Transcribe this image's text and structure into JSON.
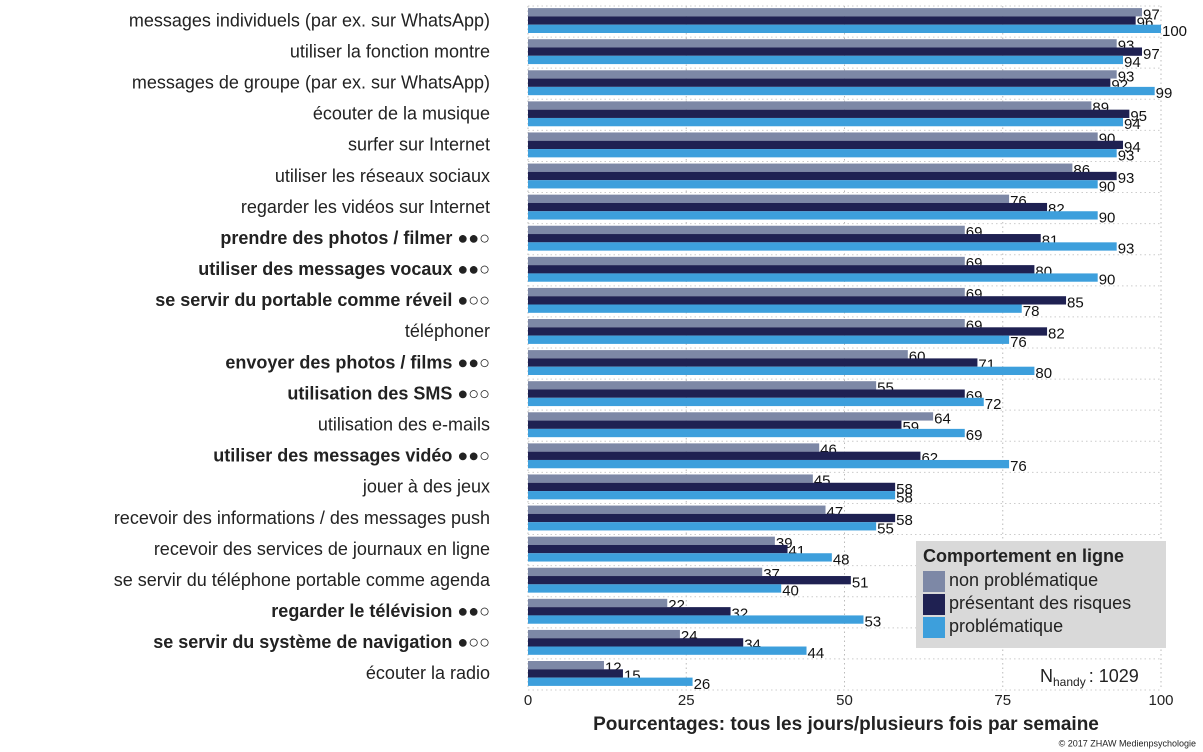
{
  "chart_data": {
    "type": "bar",
    "orientation": "horizontal",
    "categories": [
      "messages individuels (par ex. sur WhatsApp)",
      "utiliser la fonction montre",
      "messages de groupe (par ex. sur WhatsApp)",
      "écouter de la musique",
      "surfer sur Internet",
      "utiliser les réseaux sociaux",
      "regarder les vidéos sur Internet",
      "prendre des photos / filmer ●●○",
      "utiliser des messages vocaux ●●○",
      "se servir du portable comme réveil ●○○",
      "téléphoner",
      "envoyer des photos / films ●●○",
      "utilisation des SMS ●○○",
      "utilisation des e-mails",
      "utiliser des messages vidéo ●●○",
      "jouer à des jeux",
      "recevoir des informations / des messages push",
      "recevoir des services de journaux en ligne",
      "se servir du téléphone portable comme agenda",
      "regarder le télévision ●●○",
      "se servir du système de navigation ●○○",
      "écouter la radio"
    ],
    "bold": [
      false,
      false,
      false,
      false,
      false,
      false,
      false,
      true,
      true,
      true,
      false,
      true,
      true,
      false,
      true,
      false,
      false,
      false,
      false,
      true,
      true,
      false
    ],
    "series": [
      {
        "name": "non problématique",
        "color": "#7d88a6",
        "values": [
          97,
          93,
          93,
          89,
          90,
          86,
          76,
          69,
          69,
          69,
          69,
          60,
          55,
          64,
          46,
          45,
          47,
          39,
          37,
          22,
          24,
          12
        ]
      },
      {
        "name": "présentant des risques",
        "color": "#1f2152",
        "values": [
          96,
          97,
          92,
          95,
          94,
          93,
          82,
          81,
          80,
          85,
          82,
          71,
          69,
          59,
          62,
          58,
          58,
          41,
          51,
          32,
          34,
          15
        ]
      },
      {
        "name": "problématique",
        "color": "#3d9fdc",
        "values": [
          100,
          94,
          99,
          94,
          93,
          90,
          90,
          93,
          90,
          78,
          76,
          80,
          72,
          69,
          76,
          58,
          55,
          48,
          40,
          53,
          44,
          26
        ]
      }
    ],
    "xlim": [
      0,
      100
    ],
    "xticks": [
      0,
      25,
      50,
      75,
      100
    ],
    "grid": true,
    "xlabel": "Pourcentages: tous les jours/plusieurs fois par semaine",
    "legend": {
      "title": "Comportement en ligne",
      "position": "lower right"
    },
    "note": {
      "main": "N",
      "sub": "handy",
      "rest": ": 1029"
    },
    "credit": "© 2017 ZHAW Medienpsychologie"
  }
}
